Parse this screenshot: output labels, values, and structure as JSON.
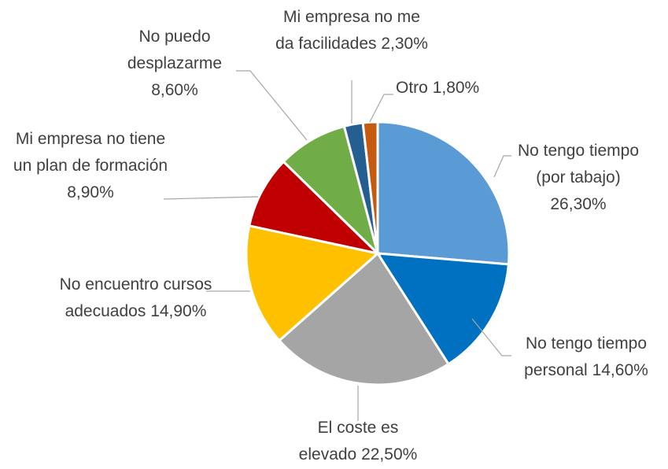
{
  "chart_data": {
    "type": "pie",
    "categories": [
      "No tengo tiempo (por tabajo)",
      "No tengo tiempo personal",
      "El coste es elevado",
      "No encuentro cursos adecuados",
      "Mi empresa no tiene un plan de formación",
      "No puedo desplazarme",
      "Mi empresa no me da facilidades",
      "Otro"
    ],
    "values": [
      26.3,
      14.6,
      22.5,
      14.9,
      8.9,
      8.6,
      2.3,
      1.8
    ],
    "value_labels": [
      "26,30%",
      "14,60%",
      "22,50%",
      "14,90%",
      "8,90%",
      "8,60%",
      "2,30%",
      "1,80%"
    ],
    "colors": [
      "#5b9bd5",
      "#0070c0",
      "#a5a5a5",
      "#ffc000",
      "#c00000",
      "#70ad47",
      "#255e91",
      "#c55a11"
    ]
  }
}
